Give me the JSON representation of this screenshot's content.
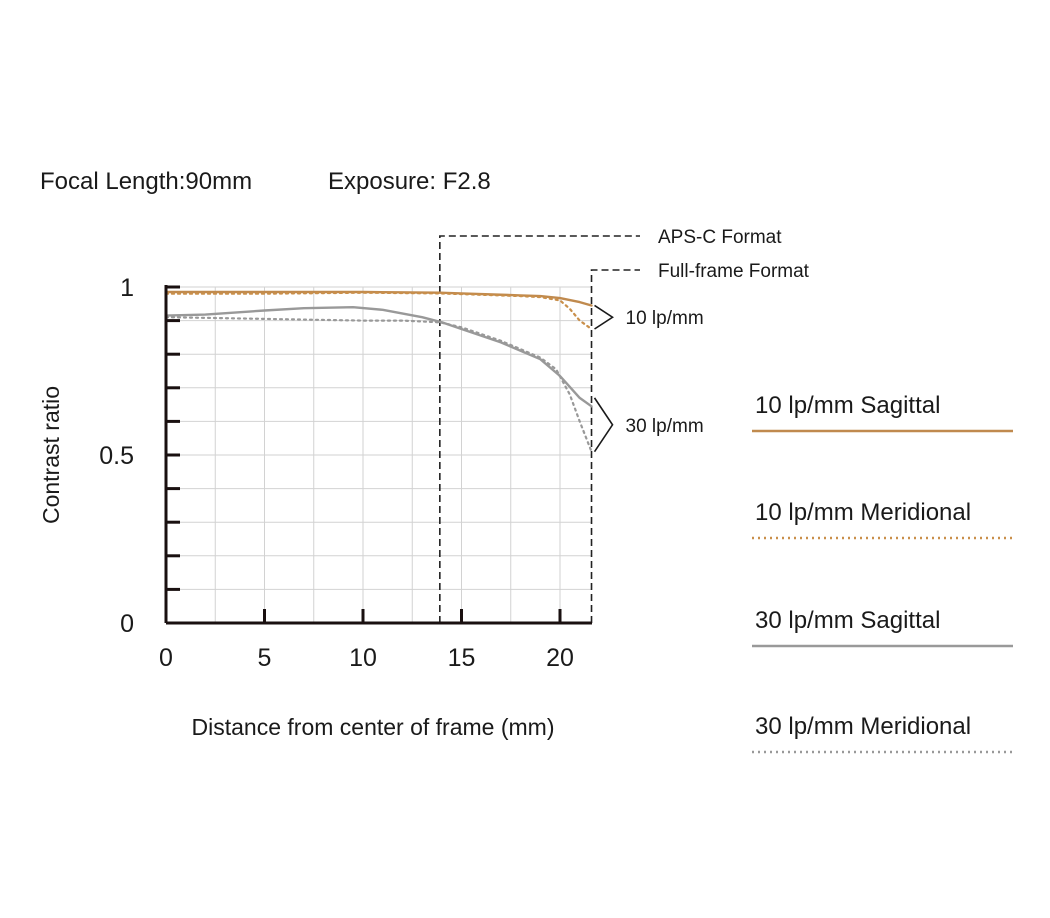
{
  "header": {
    "focal_length": "Focal Length:90mm",
    "exposure": "Exposure: F2.8"
  },
  "chart_data": {
    "type": "line",
    "xlabel": "Distance from center of frame (mm)",
    "ylabel": "Contrast ratio",
    "xlim": [
      0,
      21.6
    ],
    "ylim": [
      0,
      1
    ],
    "x_ticks": [
      {
        "value": 0,
        "label": "0"
      },
      {
        "value": 5,
        "label": "5"
      },
      {
        "value": 10,
        "label": "10"
      },
      {
        "value": 15,
        "label": "15"
      },
      {
        "value": 20,
        "label": "20"
      }
    ],
    "y_ticks": [
      {
        "value": 0,
        "label": "0"
      },
      {
        "value": 0.5,
        "label": "0.5"
      },
      {
        "value": 1,
        "label": "1"
      }
    ],
    "grid": true,
    "format_markers": [
      {
        "x": 13.9,
        "label": "APS-C Format"
      },
      {
        "x": 21.6,
        "label": "Full-frame Format"
      }
    ],
    "annotations": [
      {
        "label": "10 lp/mm",
        "x": 21.6,
        "y": 0.91
      },
      {
        "label": "30 lp/mm",
        "x": 21.6,
        "y": 0.58
      }
    ],
    "series": [
      {
        "name": "10 lp/mm Sagittal",
        "color": "#c08a4e",
        "style": "solid",
        "x": [
          0,
          2,
          5,
          10,
          13.9,
          15,
          18,
          19,
          20,
          21,
          21.6
        ],
        "y": [
          0.985,
          0.985,
          0.985,
          0.985,
          0.983,
          0.981,
          0.975,
          0.973,
          0.967,
          0.955,
          0.945
        ]
      },
      {
        "name": "10 lp/mm Meridional",
        "color": "#c98f4a",
        "style": "dotted",
        "x": [
          0,
          5,
          10,
          13.9,
          15,
          18,
          19,
          20,
          20.5,
          21,
          21.6
        ],
        "y": [
          0.98,
          0.98,
          0.983,
          0.981,
          0.979,
          0.973,
          0.97,
          0.96,
          0.935,
          0.9,
          0.875
        ]
      },
      {
        "name": "30 lp/mm Sagittal",
        "color": "#999999",
        "style": "solid",
        "x": [
          0,
          2,
          5,
          7,
          9.5,
          11,
          13,
          14,
          15,
          17,
          19,
          20,
          21,
          21.6
        ],
        "y": [
          0.915,
          0.918,
          0.93,
          0.937,
          0.94,
          0.932,
          0.91,
          0.895,
          0.875,
          0.835,
          0.785,
          0.735,
          0.67,
          0.645
        ]
      },
      {
        "name": "30 lp/mm Meridional",
        "color": "#999999",
        "style": "dotted",
        "x": [
          0,
          3,
          5,
          10,
          12,
          13.9,
          15,
          17,
          19,
          19.8,
          20.5,
          21,
          21.6
        ],
        "y": [
          0.91,
          0.907,
          0.905,
          0.9,
          0.9,
          0.895,
          0.88,
          0.84,
          0.79,
          0.755,
          0.68,
          0.6,
          0.51
        ]
      }
    ]
  }
}
